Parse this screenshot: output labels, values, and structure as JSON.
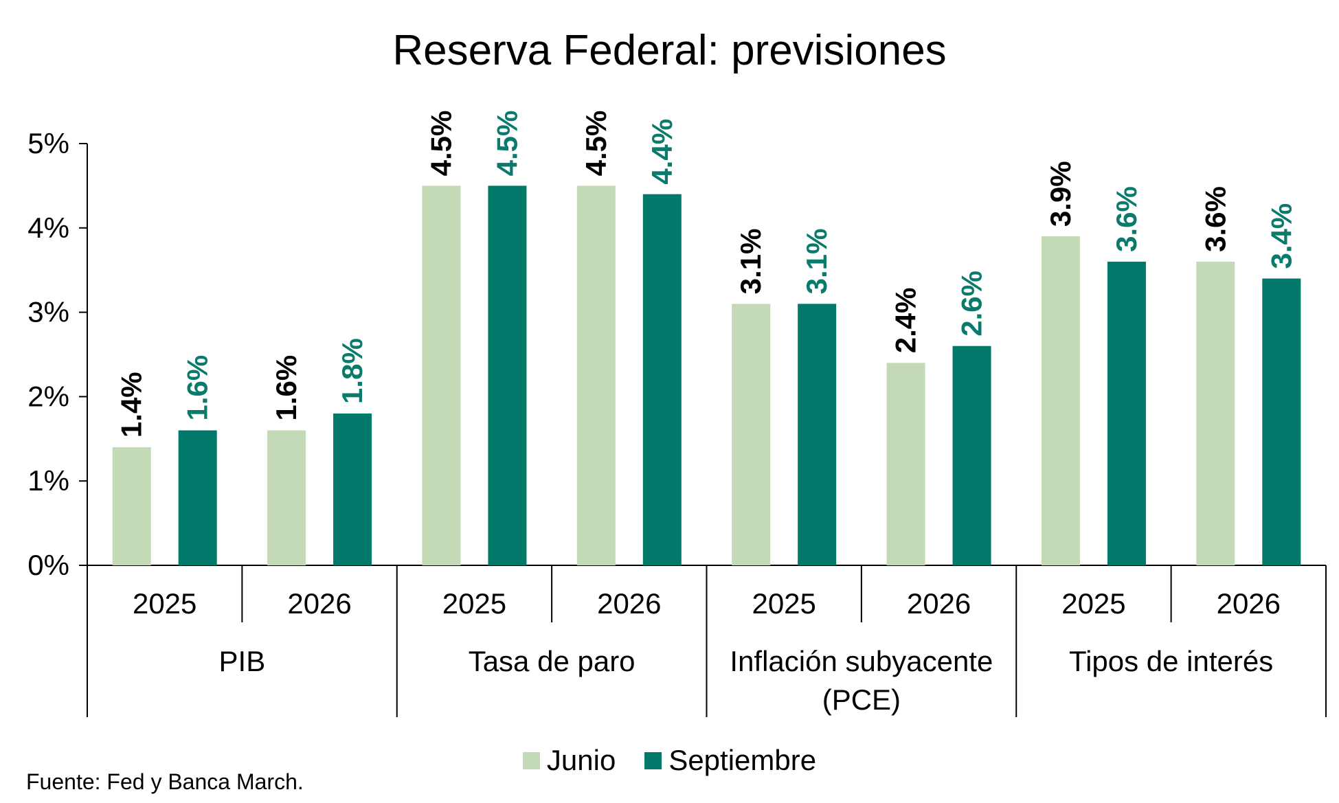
{
  "chart_data": {
    "type": "bar",
    "title": "Reserva Federal: previsiones",
    "source": "Fuente: Fed y Banca March.",
    "groups": [
      {
        "label": "PIB",
        "categories": [
          "2025",
          "2026"
        ]
      },
      {
        "label": "Tasa de paro",
        "categories": [
          "2025",
          "2026"
        ]
      },
      {
        "label": "Inflación subyacente (PCE)",
        "label_lines": [
          "Inflación subyacente",
          "(PCE)"
        ],
        "categories": [
          "2025",
          "2026"
        ]
      },
      {
        "label": "Tipos de interés",
        "categories": [
          "2025",
          "2026"
        ]
      }
    ],
    "series": [
      {
        "name": "Junio",
        "color": "#c4dab6",
        "label_color": "#000000",
        "values": [
          1.4,
          1.6,
          4.5,
          4.5,
          3.1,
          2.4,
          3.9,
          3.6
        ]
      },
      {
        "name": "Septiembre",
        "color": "#00786a",
        "label_color": "#0a7a6c",
        "values": [
          1.6,
          1.8,
          4.5,
          4.4,
          3.1,
          2.6,
          3.6,
          3.4
        ]
      }
    ],
    "ylim": [
      0,
      5
    ],
    "yticks": [
      "0%",
      "1%",
      "2%",
      "3%",
      "4%",
      "5%"
    ],
    "value_suffix": "%",
    "legend_position": "bottom",
    "grid": false
  }
}
